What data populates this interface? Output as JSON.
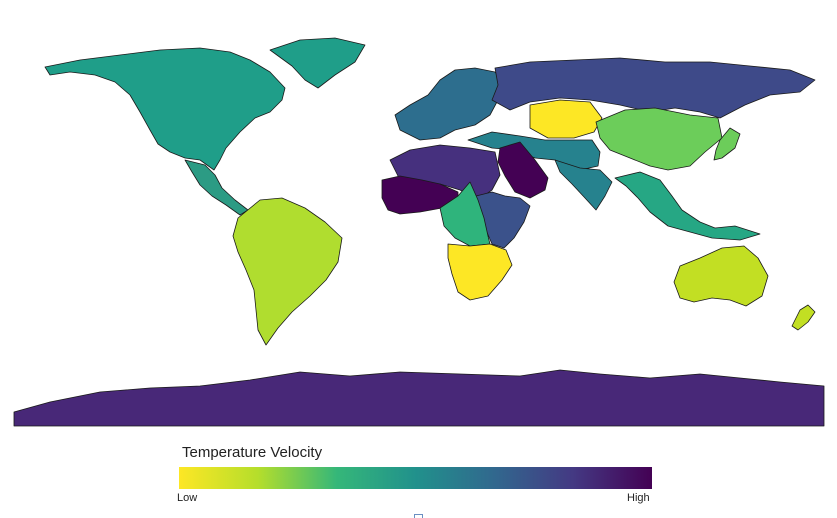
{
  "legend": {
    "title": "Temperature Velocity",
    "low_label": "Low",
    "high_label": "High",
    "stops": [
      "#fde725",
      "#b5de2b",
      "#35b779",
      "#21918c",
      "#31688e",
      "#443983",
      "#440154"
    ]
  },
  "map": {
    "ocean_color": "#ffffff",
    "outline_color": "#1a1a1a",
    "regions": [
      {
        "name": "North America",
        "color": "#1f9e89"
      },
      {
        "name": "Greenland",
        "color": "#1f9e89"
      },
      {
        "name": "Central America",
        "color": "#2c9b84"
      },
      {
        "name": "South America",
        "color": "#b0dd2f"
      },
      {
        "name": "Europe",
        "color": "#2d6e8e"
      },
      {
        "name": "Russia",
        "color": "#3e4a89"
      },
      {
        "name": "Kazakhstan",
        "color": "#fde725"
      },
      {
        "name": "China",
        "color": "#6ccd5a"
      },
      {
        "name": "Middle East",
        "color": "#26828e"
      },
      {
        "name": "South Asia",
        "color": "#26828e"
      },
      {
        "name": "Southeast Asia",
        "color": "#26a784"
      },
      {
        "name": "Arabian Peninsula",
        "color": "#440154"
      },
      {
        "name": "North Africa",
        "color": "#46307e"
      },
      {
        "name": "West Africa",
        "color": "#440154"
      },
      {
        "name": "East Africa",
        "color": "#3b528b"
      },
      {
        "name": "Central Africa",
        "color": "#2fb47c"
      },
      {
        "name": "Southern Africa",
        "color": "#fde725"
      },
      {
        "name": "Australia",
        "color": "#c2df23"
      },
      {
        "name": "New Zealand",
        "color": "#c2df23"
      },
      {
        "name": "Japan",
        "color": "#6ccd5a"
      },
      {
        "name": "Antarctica",
        "color": "#482878"
      }
    ]
  }
}
